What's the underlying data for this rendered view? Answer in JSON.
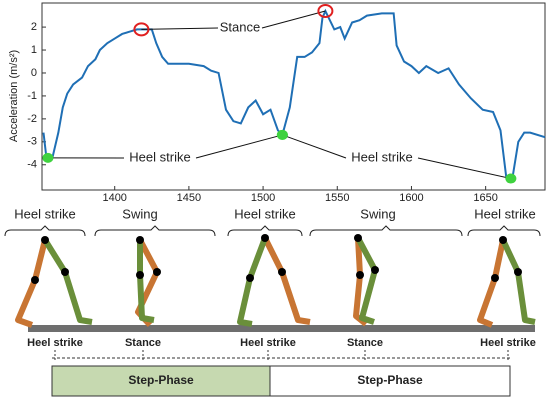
{
  "chart_data": {
    "type": "line",
    "y_label": "Acceleration (m/s²)",
    "x": [
      1352,
      1354,
      1358,
      1362,
      1365,
      1368,
      1372,
      1378,
      1382,
      1387,
      1390,
      1395,
      1400,
      1405,
      1410,
      1415,
      1425,
      1428,
      1432,
      1436,
      1450,
      1460,
      1465,
      1470,
      1475,
      1480,
      1485,
      1490,
      1495,
      1500,
      1505,
      1510,
      1513,
      1518,
      1523,
      1528,
      1533,
      1538,
      1540,
      1542,
      1548,
      1552,
      1555,
      1560,
      1565,
      1570,
      1580,
      1588,
      1590,
      1595,
      1600,
      1605,
      1610,
      1618,
      1625,
      1632,
      1640,
      1648,
      1655,
      1660,
      1664,
      1668,
      1672,
      1676,
      1680,
      1690
    ],
    "series": [
      {
        "color": "#1f6fb5",
        "values": [
          -2.6,
          -3.7,
          -3.7,
          -2.6,
          -1.5,
          -0.9,
          -0.5,
          -0.2,
          0.3,
          0.6,
          1.0,
          1.3,
          1.5,
          1.7,
          1.8,
          1.9,
          1.9,
          1.3,
          0.7,
          0.4,
          0.4,
          0.3,
          0.1,
          0,
          -1.6,
          -2.1,
          -2.2,
          -1.5,
          -1.2,
          -1.8,
          -1.6,
          -2.5,
          -2.7,
          -1.5,
          0.7,
          0.7,
          0.9,
          1.3,
          2.4,
          2.7,
          1.9,
          2.0,
          1.5,
          2.2,
          2.3,
          2.5,
          2.6,
          2.6,
          1.2,
          0.5,
          0.3,
          0,
          0.3,
          0,
          0.2,
          -0.5,
          -1.1,
          -1.6,
          -1.7,
          -2.5,
          -4.6,
          -4.6,
          -3.0,
          -2.6,
          -2.6,
          -2.8
        ]
      }
    ],
    "xlim": [
      1351,
      1690
    ],
    "ylim": [
      -5.1,
      3.05
    ],
    "xticks": [
      1400,
      1450,
      1500,
      1550,
      1600,
      1650
    ],
    "yticks": [
      -4,
      -3,
      -2,
      -1,
      0,
      1,
      2
    ],
    "annotations": [
      {
        "text": "Stance",
        "marker_color": "#e02020",
        "points": [
          [
            1418,
            1.9
          ],
          [
            1542,
            2.7
          ]
        ]
      },
      {
        "text": "Heel strike",
        "marker_color": "#3fd23f",
        "points": [
          [
            1355,
            -3.7
          ],
          [
            1513,
            -2.7
          ]
        ]
      },
      {
        "text": "Heel strike",
        "marker_color": "#3fd23f",
        "points": [
          [
            1513,
            -2.7
          ],
          [
            1667,
            -4.6
          ]
        ]
      }
    ]
  },
  "diagram": {
    "top_labels": [
      "Heel strike",
      "Swing",
      "Heel strike",
      "Swing",
      "Heel strike"
    ],
    "bottom_labels": [
      "Heel strike",
      "Stance",
      "Heel strike",
      "Stance",
      "Heel strike"
    ],
    "phases": [
      "Step-Phase",
      "Step-Phase"
    ]
  }
}
